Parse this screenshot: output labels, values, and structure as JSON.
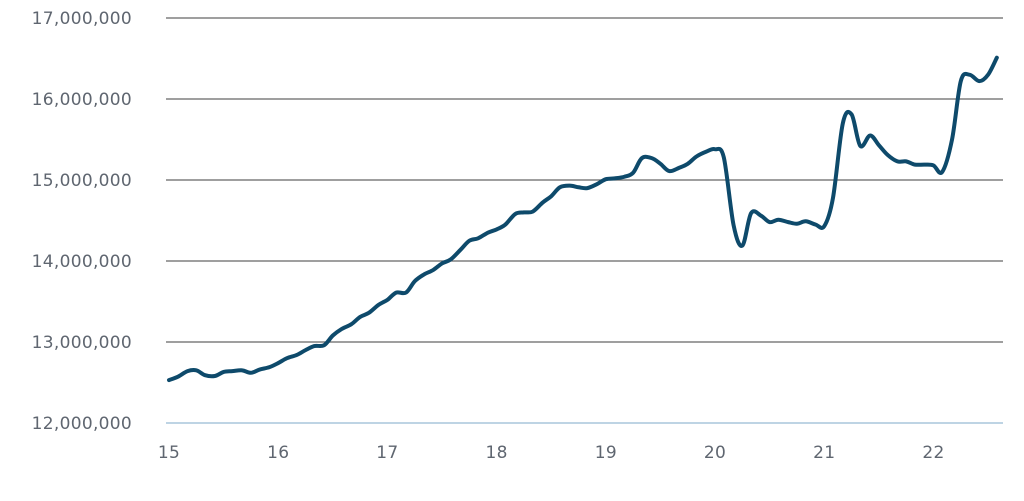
{
  "chart_data": {
    "type": "line",
    "title": "",
    "xlabel": "",
    "ylabel": "",
    "xlim": [
      15,
      22.6
    ],
    "ylim": [
      12000000,
      17000000
    ],
    "x_ticks": [
      {
        "value": 15,
        "label": "15"
      },
      {
        "value": 16,
        "label": "16"
      },
      {
        "value": 17,
        "label": "17"
      },
      {
        "value": 18,
        "label": "18"
      },
      {
        "value": 19,
        "label": "19"
      },
      {
        "value": 20,
        "label": "20"
      },
      {
        "value": 21,
        "label": "21"
      },
      {
        "value": 22,
        "label": "22"
      }
    ],
    "y_ticks": [
      {
        "value": 12000000,
        "label": "12,000,000"
      },
      {
        "value": 13000000,
        "label": "13,000,000"
      },
      {
        "value": 14000000,
        "label": "14,000,000"
      },
      {
        "value": 15000000,
        "label": "15,000,000"
      },
      {
        "value": 16000000,
        "label": "16,000,000"
      },
      {
        "value": 17000000,
        "label": "17,000,000"
      }
    ],
    "grid": "horizontal",
    "colors": {
      "line": "#0e4a6b",
      "grid": "#666666",
      "baseline": "#a9c5dc",
      "text": "#5f6670"
    },
    "series": [
      {
        "x": [
          15.0,
          15.08,
          15.17,
          15.25,
          15.33,
          15.42,
          15.5,
          15.58,
          15.67,
          15.75,
          15.83,
          15.92,
          16.0,
          16.08,
          16.17,
          16.25,
          16.33,
          16.42,
          16.5,
          16.58,
          16.67,
          16.75,
          16.83,
          16.92,
          17.0,
          17.08,
          17.17,
          17.25,
          17.33,
          17.42,
          17.5,
          17.58,
          17.67,
          17.75,
          17.83,
          17.92,
          18.0,
          18.08,
          18.17,
          18.25,
          18.33,
          18.42,
          18.5,
          18.58,
          18.67,
          18.75,
          18.83,
          18.92,
          19.0,
          19.08,
          19.17,
          19.25,
          19.33,
          19.42,
          19.5,
          19.58,
          19.67,
          19.75,
          19.83,
          19.92,
          20.0,
          20.08,
          20.17,
          20.25,
          20.33,
          20.42,
          20.5,
          20.58,
          20.67,
          20.75,
          20.83,
          20.92,
          21.0,
          21.08,
          21.17,
          21.25,
          21.33,
          21.42,
          21.5,
          21.58,
          21.67,
          21.75,
          21.83,
          21.92,
          22.0,
          22.08,
          22.17,
          22.25,
          22.33,
          22.42,
          22.5,
          22.58
        ],
        "y": [
          12530000,
          12570000,
          12640000,
          12650000,
          12590000,
          12580000,
          12630000,
          12640000,
          12650000,
          12620000,
          12660000,
          12690000,
          12740000,
          12800000,
          12840000,
          12900000,
          12950000,
          12960000,
          13080000,
          13160000,
          13220000,
          13310000,
          13360000,
          13460000,
          13520000,
          13610000,
          13610000,
          13750000,
          13830000,
          13890000,
          13970000,
          14020000,
          14140000,
          14250000,
          14280000,
          14350000,
          14390000,
          14450000,
          14580000,
          14600000,
          14610000,
          14720000,
          14800000,
          14910000,
          14930000,
          14910000,
          14900000,
          14950000,
          15010000,
          15020000,
          15040000,
          15090000,
          15270000,
          15270000,
          15200000,
          15110000,
          15150000,
          15200000,
          15290000,
          15350000,
          15380000,
          15280000,
          14440000,
          14190000,
          14590000,
          14560000,
          14480000,
          14510000,
          14480000,
          14460000,
          14490000,
          14450000,
          14430000,
          14780000,
          15700000,
          15810000,
          15420000,
          15550000,
          15430000,
          15310000,
          15230000,
          15230000,
          15190000,
          15190000,
          15180000,
          15100000,
          15500000,
          16220000,
          16300000,
          16220000,
          16300000,
          16510000
        ]
      }
    ]
  }
}
